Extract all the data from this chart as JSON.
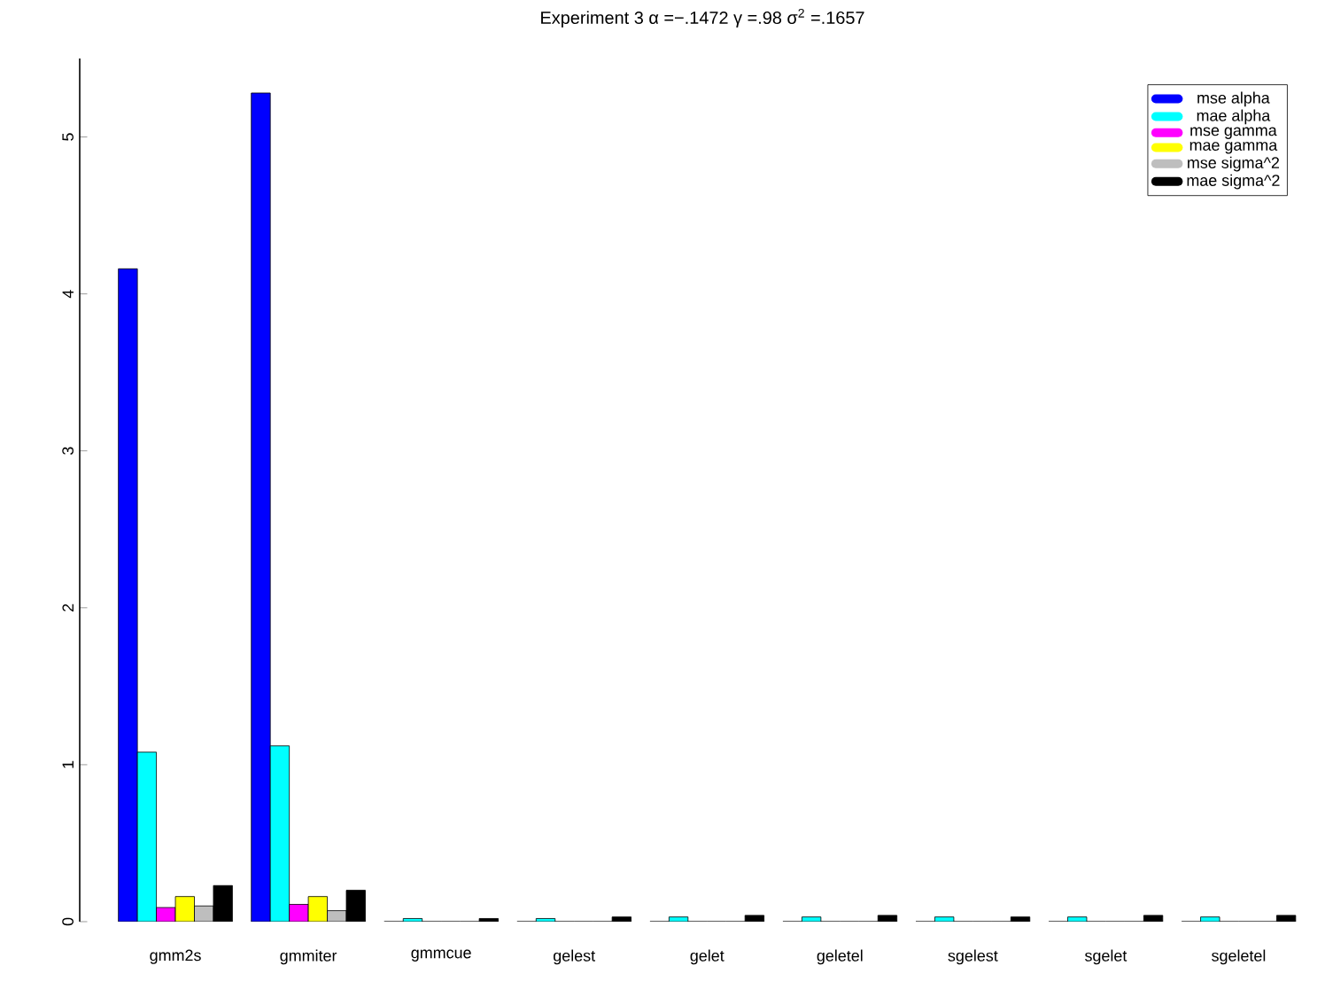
{
  "chart_data": {
    "type": "bar",
    "title": "Experiment 3 α =−.1472 γ =.98 σ$^{2}$ =.1657",
    "categories": [
      "gmm2s",
      "gmmiter",
      "gmmcue",
      "gelest",
      "gelet",
      "geletel",
      "sgelest",
      "sgelet",
      "sgeletel"
    ],
    "series": [
      {
        "name": "mse alpha",
        "color": "#0000ff",
        "values": [
          4.16,
          5.28,
          0,
          0,
          0,
          0,
          0,
          0,
          0
        ]
      },
      {
        "name": "mae alpha",
        "color": "#00ffff",
        "values": [
          1.08,
          1.12,
          0.02,
          0.02,
          0.03,
          0.03,
          0.03,
          0.03,
          0.03
        ]
      },
      {
        "name": "mse gamma",
        "color": "#ff00ff",
        "values": [
          0.09,
          0.11,
          0,
          0,
          0,
          0,
          0,
          0,
          0
        ]
      },
      {
        "name": "mae gamma",
        "color": "#ffff00",
        "values": [
          0.16,
          0.16,
          0,
          0,
          0,
          0,
          0,
          0,
          0
        ]
      },
      {
        "name": "mse sigma^2",
        "color": "#bebebe",
        "values": [
          0.1,
          0.07,
          0,
          0,
          0,
          0,
          0,
          0,
          0
        ]
      },
      {
        "name": "mae sigma^2",
        "color": "#000000",
        "values": [
          0.23,
          0.2,
          0.02,
          0.03,
          0.04,
          0.04,
          0.03,
          0.04,
          0.04
        ]
      }
    ],
    "ylim": [
      0,
      5.5
    ],
    "yticks": [
      0,
      1,
      2,
      3,
      4,
      5
    ],
    "grid": false,
    "legend": "top right"
  }
}
